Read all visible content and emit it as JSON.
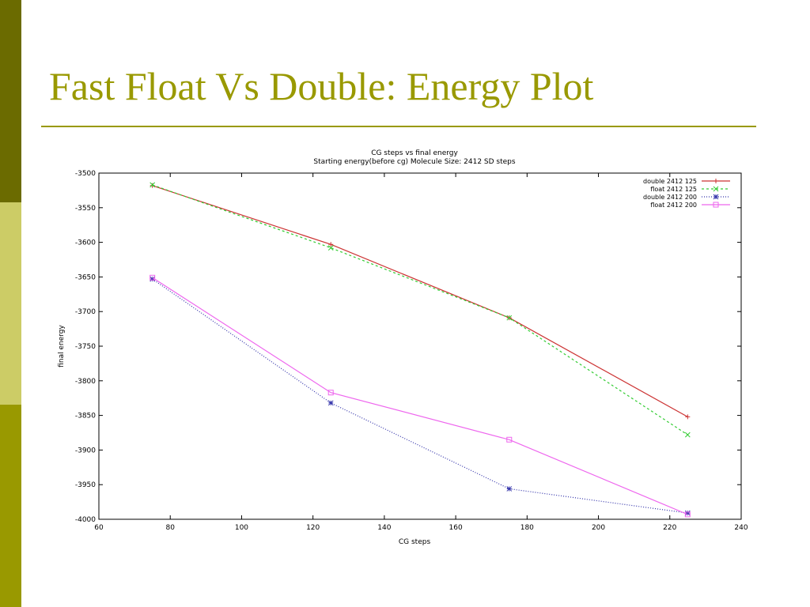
{
  "slide": {
    "title": "Fast Float Vs Double: Energy Plot",
    "colors": {
      "accent": "#999900",
      "bar_dark": "#6b6b00",
      "bar_light": "#cccc66"
    }
  },
  "chart_data": {
    "type": "line",
    "title": "CG steps vs final energy",
    "subtitle": "Starting energy(before cg) Molecule Size: 2412 SD steps",
    "xlabel": "CG steps",
    "ylabel": "final energy",
    "xlim": [
      60,
      240
    ],
    "ylim": [
      -4000,
      -3500
    ],
    "xticks": [
      60,
      80,
      100,
      120,
      140,
      160,
      180,
      200,
      220,
      240
    ],
    "yticks": [
      -3500,
      -3550,
      -3600,
      -3650,
      -3700,
      -3750,
      -3800,
      -3850,
      -3900,
      -3950,
      -4000
    ],
    "grid": false,
    "legend_position": "top-right",
    "x": [
      75,
      125,
      175,
      225
    ],
    "series": [
      {
        "name": "double 2412 125",
        "values": [
          -3518,
          -3603,
          -3709,
          -3852
        ],
        "color": "#cc3333",
        "marker": "plus",
        "dash": ""
      },
      {
        "name": "float 2412 125",
        "values": [
          -3517,
          -3608,
          -3709,
          -3878
        ],
        "color": "#33cc33",
        "marker": "x",
        "dash": "3,3"
      },
      {
        "name": "double 2412 200",
        "values": [
          -3653,
          -3832,
          -3956,
          -3991
        ],
        "color": "#3333aa",
        "marker": "star",
        "dash": "1,2"
      },
      {
        "name": "float 2412 200",
        "values": [
          -3651,
          -3817,
          -3885,
          -3993
        ],
        "color": "#ee66ee",
        "marker": "square",
        "dash": ""
      }
    ]
  }
}
